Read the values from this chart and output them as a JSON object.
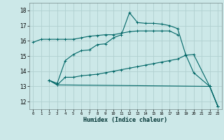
{
  "xlabel": "Humidex (Indice chaleur)",
  "bg_color": "#cce8e8",
  "grid_color": "#b0d0d0",
  "line_color": "#006666",
  "xlim": [
    -0.5,
    23.5
  ],
  "ylim": [
    11.5,
    18.5
  ],
  "yticks": [
    12,
    13,
    14,
    15,
    16,
    17,
    18
  ],
  "xticks": [
    0,
    1,
    2,
    3,
    4,
    5,
    6,
    7,
    8,
    9,
    10,
    11,
    12,
    13,
    14,
    15,
    16,
    17,
    18,
    19,
    20,
    21,
    22,
    23
  ],
  "series": [
    {
      "x": [
        0,
        1,
        2,
        3,
        4,
        5,
        6,
        7,
        8,
        9,
        10,
        11,
        12,
        13,
        14,
        15,
        16,
        17,
        18
      ],
      "y": [
        15.9,
        16.1,
        16.1,
        16.1,
        16.1,
        16.1,
        16.2,
        16.3,
        16.35,
        16.4,
        16.4,
        16.5,
        16.6,
        16.65,
        16.65,
        16.65,
        16.65,
        16.65,
        16.4
      ]
    },
    {
      "x": [
        2,
        3,
        4,
        5,
        6,
        7,
        8,
        9,
        10,
        11,
        12,
        13,
        14,
        15,
        16,
        17,
        18,
        19,
        20,
        22,
        23
      ],
      "y": [
        13.4,
        13.2,
        14.7,
        15.1,
        15.35,
        15.4,
        15.75,
        15.8,
        16.2,
        16.4,
        17.85,
        17.2,
        17.15,
        17.15,
        17.1,
        17.0,
        16.8,
        15.1,
        13.9,
        13.0,
        11.7
      ]
    },
    {
      "x": [
        2,
        3,
        4,
        5,
        6,
        7,
        8,
        9,
        10,
        11,
        12,
        13,
        14,
        15,
        16,
        17,
        18,
        19,
        20,
        22,
        23
      ],
      "y": [
        13.4,
        13.1,
        13.6,
        13.6,
        13.7,
        13.75,
        13.8,
        13.9,
        14.0,
        14.1,
        14.2,
        14.3,
        14.4,
        14.5,
        14.6,
        14.7,
        14.8,
        15.05,
        15.1,
        13.0,
        11.7
      ]
    },
    {
      "x": [
        2,
        3,
        22,
        23
      ],
      "y": [
        13.4,
        13.1,
        13.0,
        11.7
      ]
    }
  ]
}
